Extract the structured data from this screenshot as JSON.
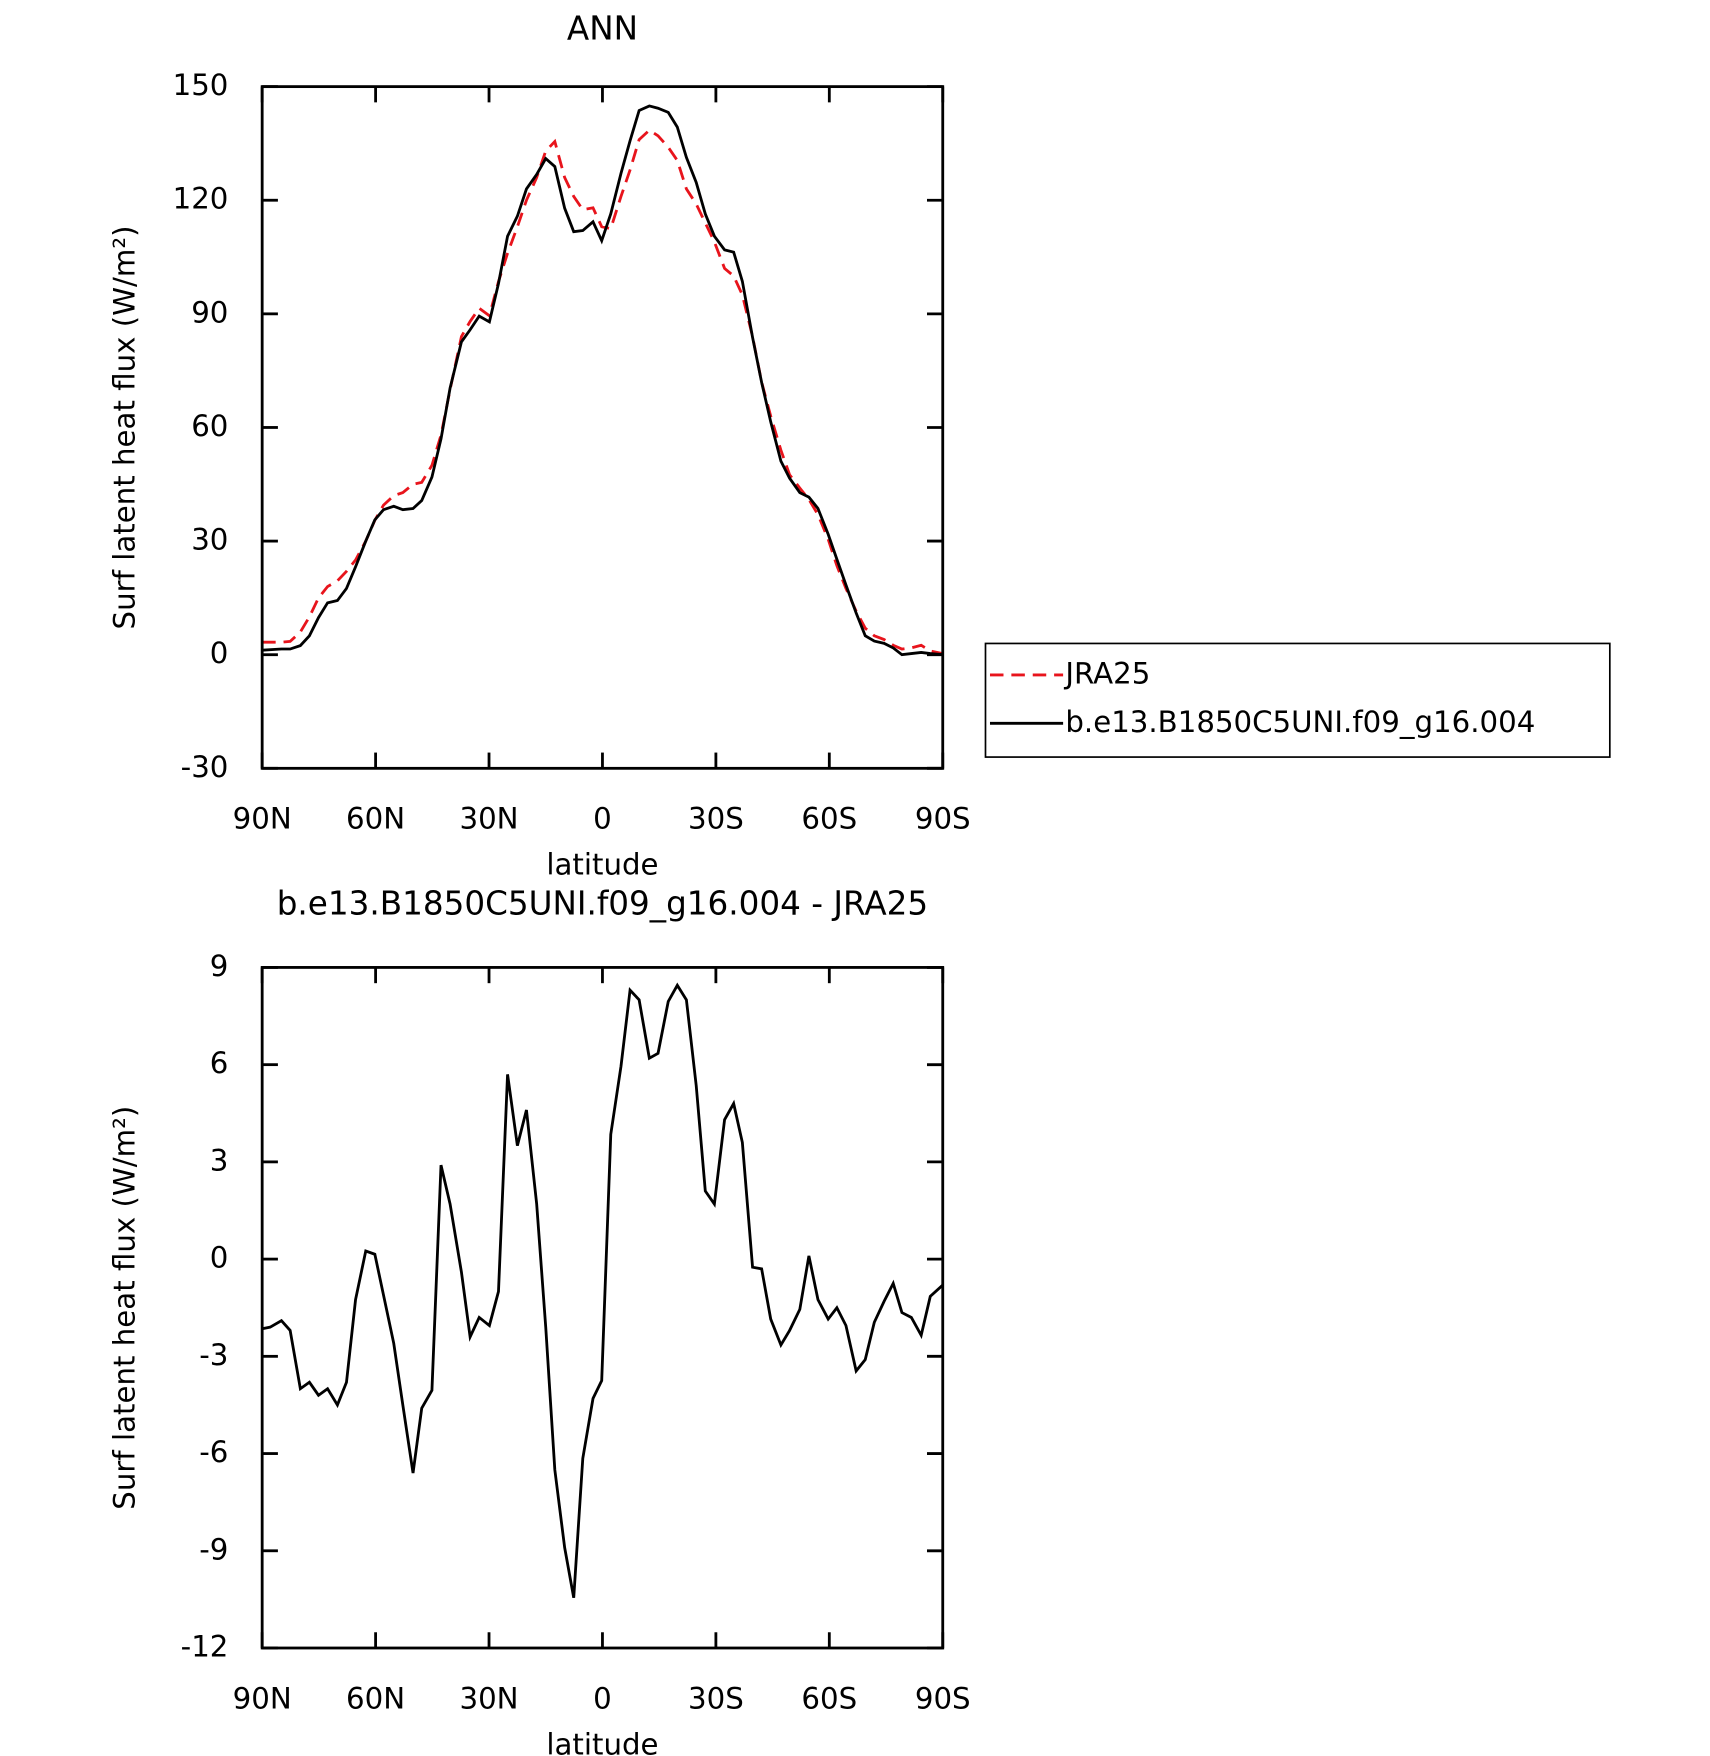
{
  "chart_data": [
    {
      "type": "line",
      "title": "ANN",
      "xlabel": "latitude",
      "ylabel": "Surf latent heat flux (W/m²)",
      "x": [
        90,
        84.9,
        82.6,
        79.9,
        77.5,
        75.1,
        72.7,
        70.1,
        67.7,
        65.3,
        62.6,
        60.2,
        57.9,
        55.2,
        52.8,
        50.1,
        47.8,
        45.1,
        42.7,
        40.3,
        37.3,
        35.0,
        32.6,
        29.9,
        27.5,
        25.1,
        22.5,
        20.1,
        17.4,
        15.0,
        12.6,
        10.0,
        7.6,
        5.2,
        2.5,
        0.2,
        -2.2,
        -4.9,
        -7.3,
        -9.7,
        -12.4,
        -14.7,
        -17.4,
        -19.8,
        -22.2,
        -24.8,
        -27.2,
        -29.6,
        -32.3,
        -34.7,
        -37.0,
        -39.7,
        -42.1,
        -44.5,
        -47.2,
        -49.5,
        -52.2,
        -54.6,
        -57.0,
        -59.7,
        -62.0,
        -64.4,
        -67.1,
        -69.5,
        -71.9,
        -74.5,
        -76.9,
        -79.2,
        -81.7,
        -84.3,
        -86.7,
        -90
      ],
      "series": [
        {
          "name": "JRA25",
          "color": "#e8141c",
          "linestyle": "dashed",
          "values": [
            3.3,
            3.3,
            3.5,
            6,
            10,
            15,
            18,
            19.5,
            22,
            25,
            30,
            35.5,
            39.5,
            42,
            42.8,
            45,
            45.5,
            50,
            58,
            70,
            84,
            88,
            91.5,
            89.5,
            98.5,
            106,
            113,
            120,
            126,
            133,
            135.5,
            126,
            121,
            117.5,
            118,
            113,
            112.5,
            121,
            128,
            136,
            138.5,
            137,
            134,
            130.5,
            123,
            119,
            114,
            109,
            102,
            100,
            95,
            84,
            72,
            63,
            54,
            47.5,
            44,
            41,
            37,
            30.5,
            23.5,
            17.5,
            11.5,
            7,
            5,
            4,
            2.5,
            1.5,
            1.8,
            2.5,
            1,
            0.3
          ]
        },
        {
          "name": "b.e13.B1850C5UNI.f09_g16.004",
          "color": "#000000",
          "linestyle": "solid",
          "values": [
            1.2,
            1.5,
            1.5,
            2.4,
            5,
            9.8,
            13.7,
            14.3,
            17.5,
            23.2,
            30,
            35.6,
            38.3,
            39.2,
            38.3,
            38.6,
            40.7,
            46.9,
            57,
            70.4,
            82.6,
            85.8,
            89.4,
            87.9,
            98,
            110.5,
            115.8,
            123,
            126.8,
            131,
            128.9,
            117.9,
            111.7,
            112,
            114.3,
            109.3,
            116.4,
            127.1,
            135.7,
            143.7,
            144.9,
            144.3,
            143.2,
            139.3,
            131.3,
            124.7,
            116.4,
            110.5,
            106.9,
            106.3,
            98.6,
            83.8,
            71.9,
            61.5,
            51.1,
            46.6,
            42.8,
            41.6,
            38.6,
            31.8,
            25.2,
            18.4,
            11,
            5,
            3.6,
            3,
            1.8,
            0,
            0.3,
            0.6,
            0.3,
            0
          ]
        }
      ],
      "xlim": [
        90,
        -90
      ],
      "xticks": [
        {
          "value": 90,
          "label": "90N"
        },
        {
          "value": 60,
          "label": "60N"
        },
        {
          "value": 30,
          "label": "30N"
        },
        0,
        {
          "value": -30,
          "label": "30S"
        },
        {
          "value": -60,
          "label": "60S"
        },
        {
          "value": -90,
          "label": "90S"
        }
      ],
      "ylim": [
        -30,
        150
      ],
      "yticks": [
        -30,
        0,
        30,
        60,
        90,
        120,
        150
      ],
      "legend": "right"
    },
    {
      "type": "line",
      "title": "b.e13.B1850C5UNI.f09_g16.004 - JRA25",
      "xlabel": "latitude",
      "ylabel": "Surf latent heat flux (W/m²)",
      "x": [
        90,
        87.9,
        84.9,
        82.6,
        79.9,
        77.5,
        75.1,
        72.7,
        70.1,
        67.7,
        65.3,
        62.6,
        60.2,
        55.2,
        52.8,
        50.1,
        47.8,
        45.1,
        42.7,
        40.3,
        37.3,
        35.0,
        32.6,
        29.9,
        27.5,
        25.1,
        22.5,
        20.1,
        17.4,
        15.0,
        12.6,
        10.0,
        7.6,
        5.2,
        2.5,
        0.2,
        -2.2,
        -4.9,
        -7.3,
        -9.7,
        -12.4,
        -14.7,
        -17.4,
        -19.8,
        -22.2,
        -24.8,
        -27.2,
        -29.6,
        -32.3,
        -34.7,
        -37.0,
        -39.7,
        -42.1,
        -44.5,
        -47.2,
        -49.5,
        -52.2,
        -54.6,
        -57.0,
        -59.7,
        -62.0,
        -64.4,
        -67.1,
        -69.5,
        -71.9,
        -74.5,
        -76.9,
        -79.2,
        -81.7,
        -84.3,
        -86.7,
        -90
      ],
      "series": [
        {
          "color": "#000000",
          "linestyle": "solid",
          "values": [
            -2.15,
            -2.1,
            -1.9,
            -2.2,
            -4.0,
            -3.8,
            -4.2,
            -4.0,
            -4.5,
            -3.8,
            -1.25,
            0.25,
            0.15,
            -2.6,
            -4.5,
            -6.6,
            -4.6,
            -4.05,
            2.9,
            1.7,
            -0.4,
            -2.4,
            -1.8,
            -2.05,
            -1.0,
            5.7,
            3.5,
            4.6,
            1.7,
            -2.1,
            -6.5,
            -8.9,
            -10.45,
            -6.15,
            -4.3,
            -3.75,
            3.85,
            5.95,
            8.3,
            8.0,
            6.2,
            6.35,
            7.95,
            8.45,
            8.0,
            5.35,
            2.1,
            1.7,
            4.3,
            4.8,
            3.6,
            -0.25,
            -0.3,
            -1.85,
            -2.65,
            -2.2,
            -1.55,
            0.1,
            -1.25,
            -1.85,
            -1.5,
            -2.05,
            -3.45,
            -3.1,
            -1.95,
            -1.3,
            -0.75,
            -1.65,
            -1.8,
            -2.35,
            -1.15,
            -0.8
          ]
        }
      ],
      "xlim": [
        90,
        -90
      ],
      "xticks": [
        {
          "value": 90,
          "label": "90N"
        },
        {
          "value": 60,
          "label": "60N"
        },
        {
          "value": 30,
          "label": "30N"
        },
        0,
        {
          "value": -30,
          "label": "30S"
        },
        {
          "value": -60,
          "label": "60S"
        },
        {
          "value": -90,
          "label": "90S"
        }
      ],
      "ylim": [
        -12,
        9
      ],
      "yticks": [
        -12,
        -9,
        -6,
        -3,
        0,
        3,
        6,
        9
      ]
    }
  ]
}
